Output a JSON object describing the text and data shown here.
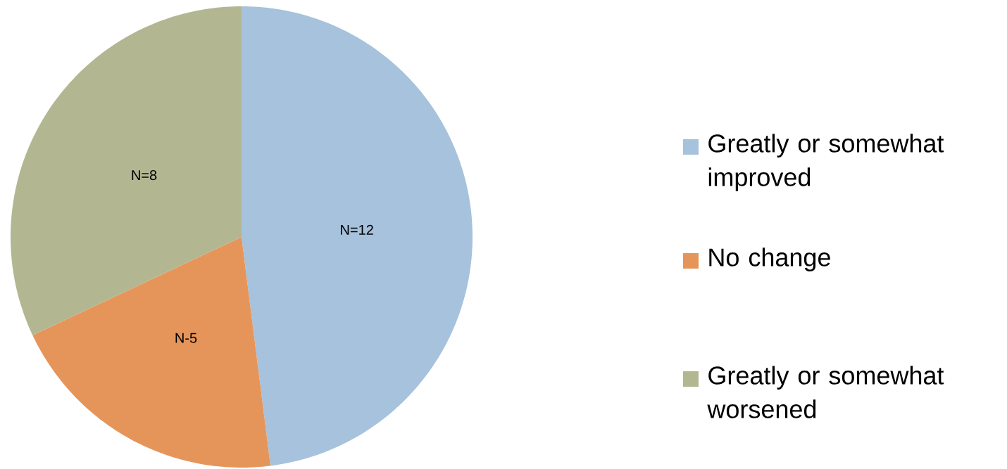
{
  "chart_data": {
    "type": "pie",
    "categories": [
      "Greatly or somewhat improved",
      "No change",
      "Greatly or somewhat worsened"
    ],
    "values": [
      12,
      5,
      8
    ],
    "colors": [
      "#a6c2dc",
      "#e6955a",
      "#b2b792"
    ],
    "value_labels": [
      "N=12",
      "N-5",
      "N=8"
    ],
    "legend": "right"
  }
}
